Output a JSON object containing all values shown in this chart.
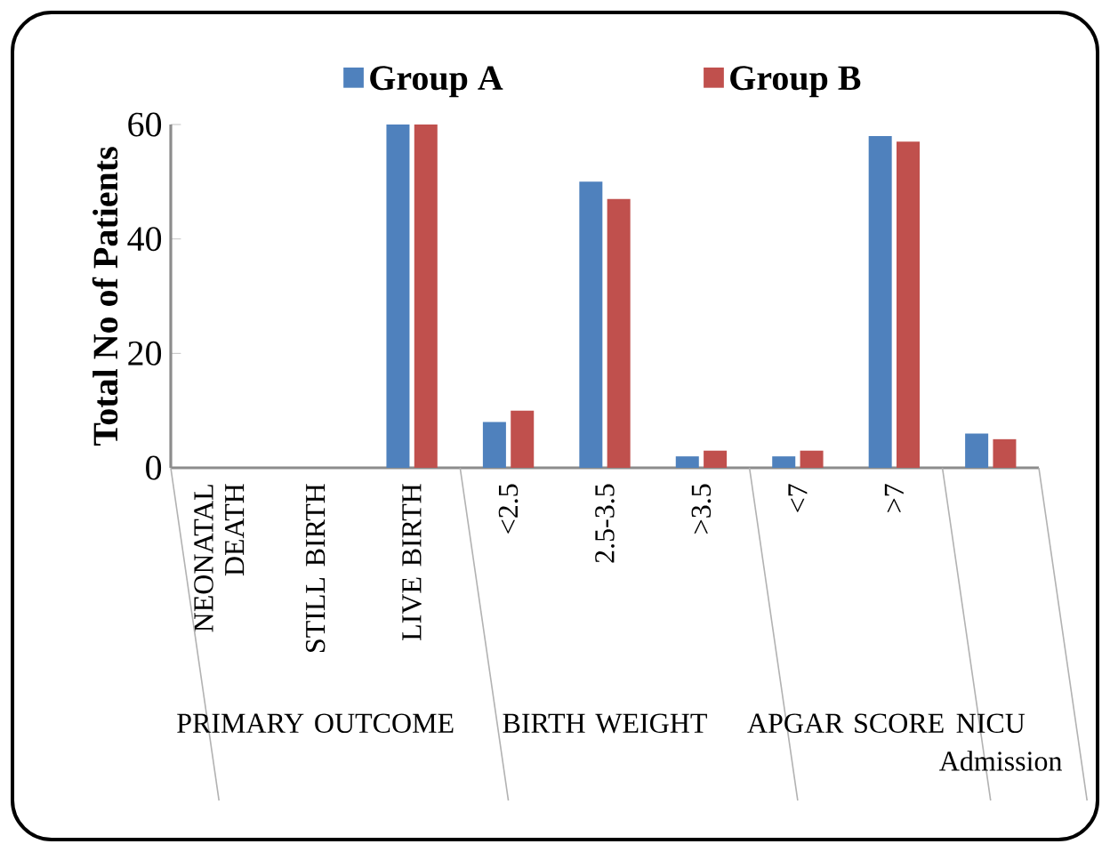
{
  "chart_data": {
    "type": "bar",
    "ylabel": "Total No of Patients",
    "categories": [
      "NEONATAL DEATH",
      "STILL BIRTH",
      "LIVE BIRTH",
      "<2.5",
      "2.5-3.5",
      ">3.5",
      "<7",
      ">7",
      null
    ],
    "series": [
      {
        "name": "Group A",
        "color": "#4f81bd",
        "values": [
          0,
          0,
          60,
          8,
          50,
          2,
          2,
          58,
          6
        ]
      },
      {
        "name": "Group B",
        "color": "#c0504d",
        "values": [
          0,
          0,
          60,
          10,
          47,
          3,
          3,
          57,
          5
        ]
      }
    ],
    "ylim": [
      0,
      60
    ],
    "yticks": [
      0,
      20,
      40,
      60
    ],
    "legend": "top",
    "annotations": [
      "PRIMARY OUTCOME",
      "BIRTH WEIGHT",
      "APGAR SCORE",
      "NICU Admission"
    ]
  }
}
